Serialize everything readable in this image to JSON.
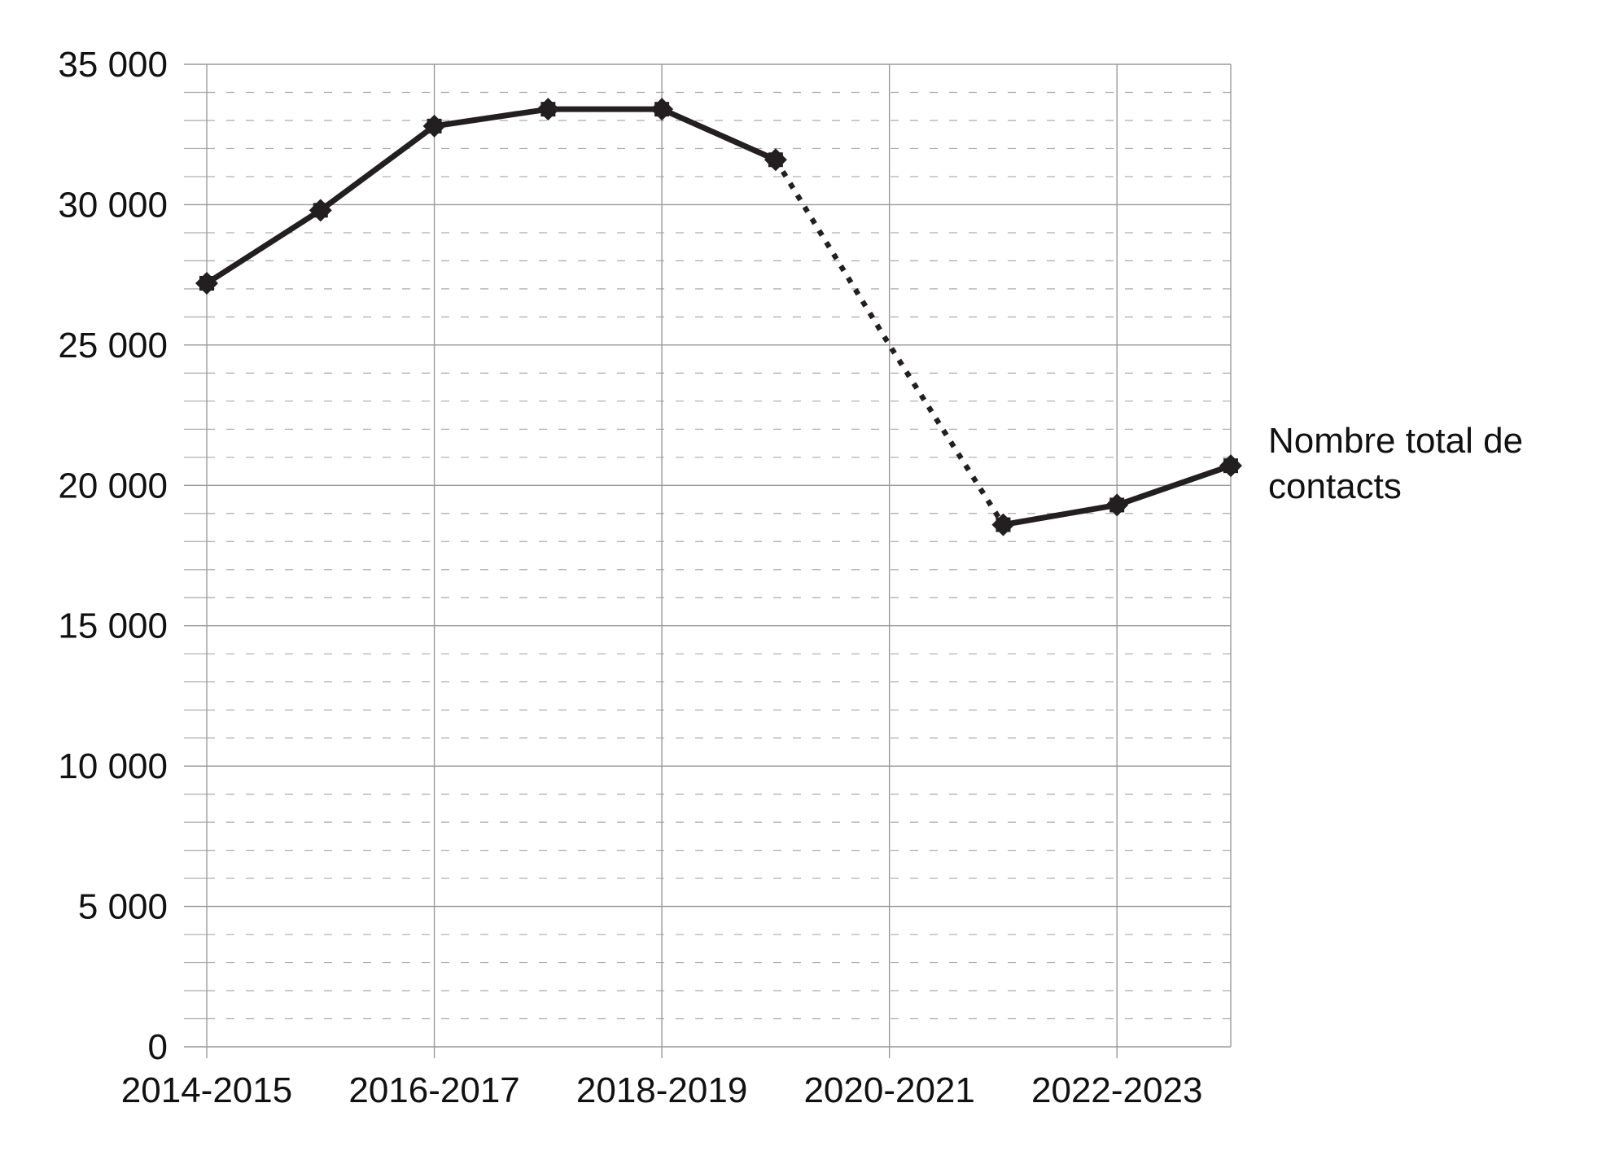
{
  "chart_data": {
    "type": "line",
    "x": [
      "2014-2015",
      "2015-2016",
      "2016-2017",
      "2017-2018",
      "2018-2019",
      "2019-2020",
      "2020-2021",
      "2021-2022",
      "2022-2023",
      "2023-2024"
    ],
    "x_tick_labels": [
      "2014-2015",
      "2016-2017",
      "2018-2019",
      "2020-2021",
      "2022-2023"
    ],
    "series": [
      {
        "name": "Nombre total de contacts",
        "values": [
          27200,
          29800,
          32800,
          33400,
          33400,
          31600,
          25000,
          18600,
          19300,
          20700
        ],
        "interpolated_between": [
          "2019-2020",
          "2021-2022"
        ]
      }
    ],
    "ylim": [
      0,
      35000
    ],
    "y_ticks": [
      "0",
      "5 000",
      "10 000",
      "15 000",
      "20 000",
      "25 000",
      "30 000",
      "35 000"
    ],
    "y_major_step": 5000,
    "y_minor_step": 1000,
    "grid": true,
    "legend": "label at end of line (right)",
    "title": "",
    "xlabel": "",
    "ylabel": "",
    "colors": {
      "line": "#231f20",
      "major_grid": "#999999",
      "minor_grid": "#aaaaaa"
    }
  }
}
